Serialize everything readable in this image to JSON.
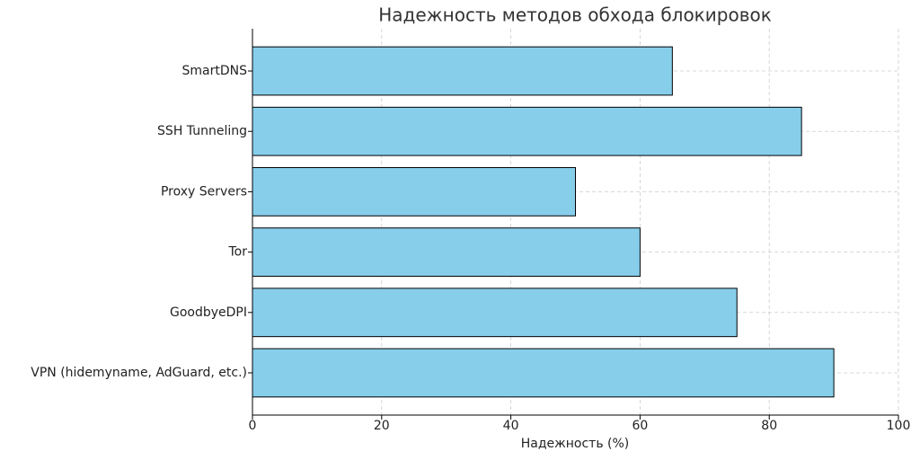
{
  "chart_data": {
    "type": "barh",
    "title": "Надежность методов обхода блокировок",
    "xlabel": "Надежность (%)",
    "categories": [
      "VPN (hidemyname, AdGuard, etc.)",
      "GoodbyeDPI",
      "Tor",
      "Proxy Servers",
      "SSH Tunneling",
      "SmartDNS"
    ],
    "values": [
      90,
      75,
      60,
      50,
      85,
      65
    ],
    "color": "#87ceeb",
    "xlim": [
      0,
      100
    ],
    "xticks": [
      0,
      20,
      40,
      60,
      80,
      100
    ],
    "grid": true
  }
}
